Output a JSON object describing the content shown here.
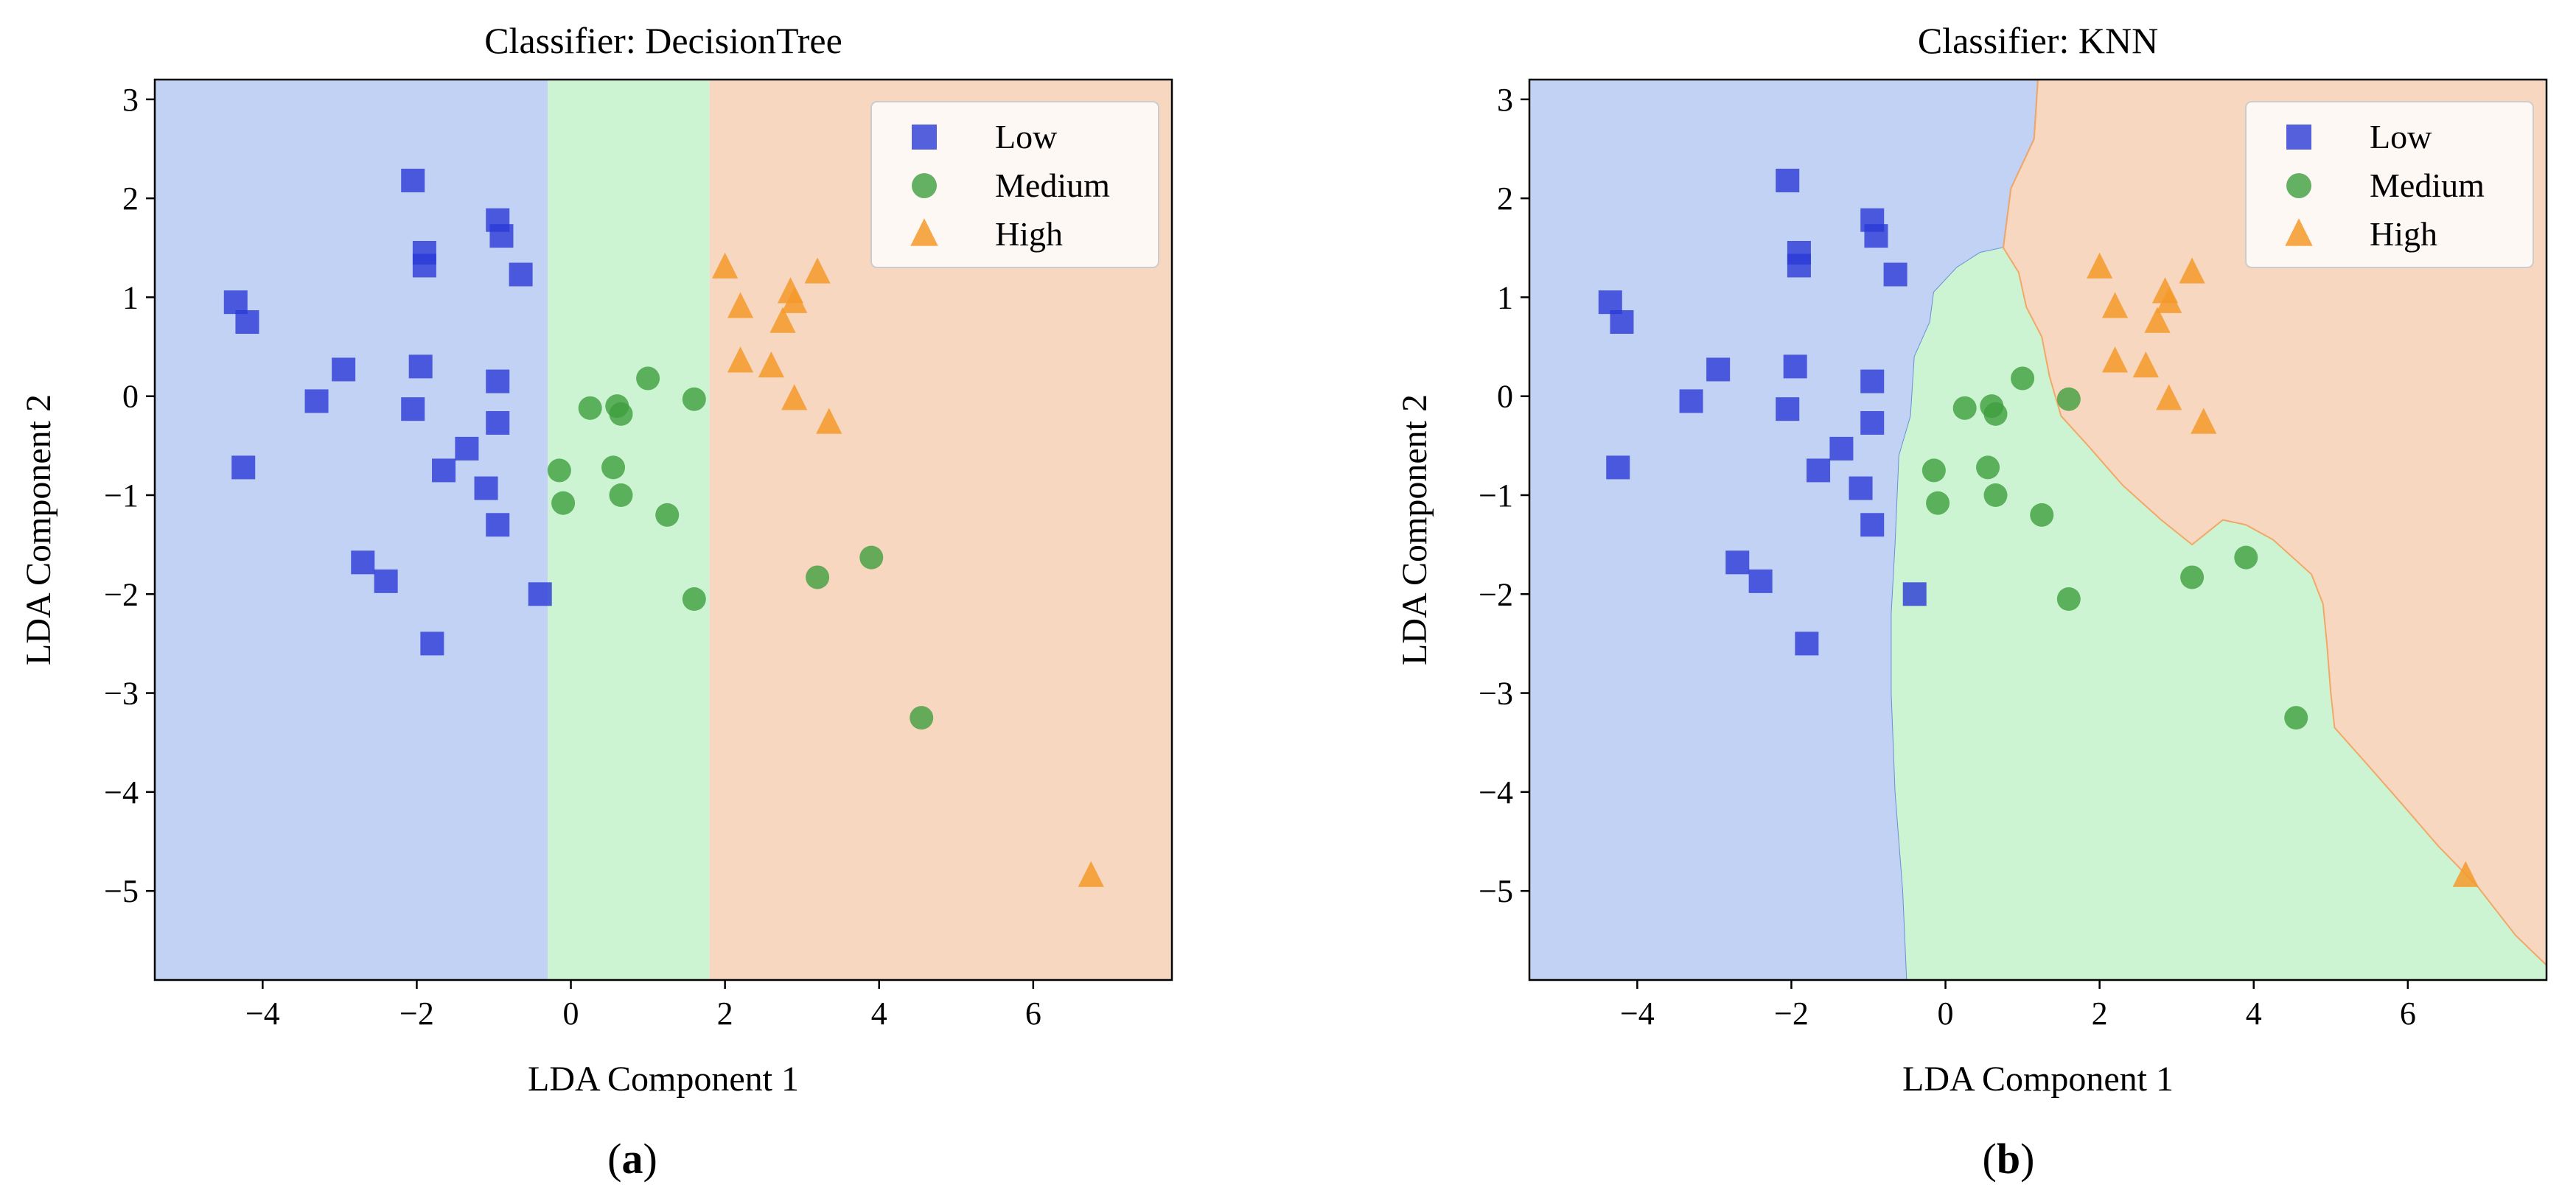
{
  "chart_data": [
    {
      "type": "scatter",
      "title": "Classifier: DecisionTree",
      "xlabel": "LDA Component 1",
      "ylabel": "LDA Component 2",
      "xlim": [
        -5.4,
        7.8
      ],
      "ylim": [
        -5.9,
        3.2
      ],
      "xticks": [
        -4,
        -2,
        0,
        2,
        4,
        6
      ],
      "yticks": [
        -5,
        -4,
        -3,
        -2,
        -1,
        0,
        1,
        2,
        3
      ],
      "xtick_labels": [
        "−4",
        "−2",
        "0",
        "2",
        "4",
        "6"
      ],
      "ytick_labels": [
        "−5",
        "−4",
        "−3",
        "−2",
        "−1",
        "0",
        "1",
        "2",
        "3"
      ],
      "grid": false,
      "legend_position": "top-right",
      "subfigure_label": "(a)",
      "regions": [
        {
          "class": "Low",
          "color": "#c1d2f4",
          "x_range": [
            -5.4,
            -0.3
          ]
        },
        {
          "class": "Medium",
          "color": "#cdf4d2",
          "x_range": [
            -0.3,
            1.8
          ]
        },
        {
          "class": "High",
          "color": "#f7d7bf",
          "x_range": [
            1.8,
            7.8
          ]
        }
      ]
    },
    {
      "type": "scatter",
      "title": "Classifier: KNN",
      "xlabel": "LDA Component 1",
      "ylabel": "LDA Component 2",
      "xlim": [
        -5.4,
        7.8
      ],
      "ylim": [
        -5.9,
        3.2
      ],
      "xticks": [
        -4,
        -2,
        0,
        2,
        4,
        6
      ],
      "yticks": [
        -5,
        -4,
        -3,
        -2,
        -1,
        0,
        1,
        2,
        3
      ],
      "xtick_labels": [
        "−4",
        "−2",
        "0",
        "2",
        "4",
        "6"
      ],
      "ytick_labels": [
        "−5",
        "−4",
        "−3",
        "−2",
        "−1",
        "0",
        "1",
        "2",
        "3"
      ],
      "grid": false,
      "legend_position": "top-right",
      "subfigure_label": "(b)",
      "regions": [
        {
          "class": "Low",
          "color": "#c1d2f4",
          "polygon": [
            [
              -5.4,
              3.2
            ],
            [
              1.2,
              3.2
            ],
            [
              1.15,
              2.6
            ],
            [
              0.85,
              2.1
            ],
            [
              0.75,
              1.5
            ],
            [
              0.45,
              1.45
            ],
            [
              0.15,
              1.3
            ],
            [
              -0.15,
              1.05
            ],
            [
              -0.2,
              0.75
            ],
            [
              -0.4,
              0.4
            ],
            [
              -0.45,
              -0.2
            ],
            [
              -0.6,
              -0.6
            ],
            [
              -0.65,
              -1.5
            ],
            [
              -0.7,
              -2.2
            ],
            [
              -0.7,
              -3.0
            ],
            [
              -0.65,
              -4.0
            ],
            [
              -0.55,
              -5.0
            ],
            [
              -0.5,
              -5.9
            ],
            [
              -5.4,
              -5.9
            ]
          ]
        },
        {
          "class": "Medium",
          "color": "#cdf4d2",
          "polygon": [
            [
              -0.5,
              -5.9
            ],
            [
              -0.55,
              -5.0
            ],
            [
              -0.65,
              -4.0
            ],
            [
              -0.7,
              -3.0
            ],
            [
              -0.7,
              -2.2
            ],
            [
              -0.65,
              -1.5
            ],
            [
              -0.6,
              -0.6
            ],
            [
              -0.45,
              -0.2
            ],
            [
              -0.4,
              0.4
            ],
            [
              -0.2,
              0.75
            ],
            [
              -0.15,
              1.05
            ],
            [
              0.15,
              1.3
            ],
            [
              0.45,
              1.45
            ],
            [
              0.75,
              1.5
            ],
            [
              0.95,
              1.25
            ],
            [
              1.05,
              0.9
            ],
            [
              1.25,
              0.6
            ],
            [
              1.35,
              0.2
            ],
            [
              1.5,
              -0.2
            ],
            [
              1.85,
              -0.5
            ],
            [
              2.3,
              -0.9
            ],
            [
              2.8,
              -1.25
            ],
            [
              3.2,
              -1.5
            ],
            [
              3.6,
              -1.25
            ],
            [
              3.9,
              -1.3
            ],
            [
              4.25,
              -1.45
            ],
            [
              4.75,
              -1.8
            ],
            [
              4.9,
              -2.1
            ],
            [
              4.95,
              -2.5
            ],
            [
              5.0,
              -3.0
            ],
            [
              5.05,
              -3.35
            ],
            [
              5.45,
              -3.7
            ],
            [
              5.9,
              -4.1
            ],
            [
              6.4,
              -4.55
            ],
            [
              6.9,
              -4.95
            ],
            [
              7.4,
              -5.45
            ],
            [
              7.8,
              -5.75
            ],
            [
              7.8,
              -5.9
            ]
          ]
        },
        {
          "class": "High",
          "color": "#f7d7bf",
          "polygon": [
            [
              1.2,
              3.2
            ],
            [
              7.8,
              3.2
            ],
            [
              7.8,
              -5.75
            ],
            [
              7.4,
              -5.45
            ],
            [
              6.9,
              -4.95
            ],
            [
              6.4,
              -4.55
            ],
            [
              5.9,
              -4.1
            ],
            [
              5.45,
              -3.7
            ],
            [
              5.05,
              -3.35
            ],
            [
              5.0,
              -3.0
            ],
            [
              4.95,
              -2.5
            ],
            [
              4.9,
              -2.1
            ],
            [
              4.75,
              -1.8
            ],
            [
              4.25,
              -1.45
            ],
            [
              3.9,
              -1.3
            ],
            [
              3.6,
              -1.25
            ],
            [
              3.2,
              -1.5
            ],
            [
              2.8,
              -1.25
            ],
            [
              2.3,
              -0.9
            ],
            [
              1.85,
              -0.5
            ],
            [
              1.5,
              -0.2
            ],
            [
              1.35,
              0.2
            ],
            [
              1.25,
              0.6
            ],
            [
              1.05,
              0.9
            ],
            [
              0.95,
              1.25
            ],
            [
              0.75,
              1.5
            ],
            [
              0.85,
              2.1
            ],
            [
              1.15,
              2.6
            ]
          ]
        }
      ]
    }
  ],
  "series": [
    {
      "name": "Low",
      "marker": "square",
      "color": "#2b3ad6",
      "points": [
        [
          -4.35,
          0.95
        ],
        [
          -4.2,
          0.75
        ],
        [
          -4.25,
          -0.72
        ],
        [
          -3.3,
          -0.05
        ],
        [
          -2.95,
          0.27
        ],
        [
          -2.05,
          2.18
        ],
        [
          -1.9,
          1.45
        ],
        [
          -1.9,
          1.32
        ],
        [
          -1.95,
          0.3
        ],
        [
          -2.05,
          -0.13
        ],
        [
          -0.95,
          1.78
        ],
        [
          -0.9,
          1.62
        ],
        [
          -0.65,
          1.23
        ],
        [
          -0.95,
          0.15
        ],
        [
          -0.95,
          -0.27
        ],
        [
          -1.35,
          -0.53
        ],
        [
          -1.65,
          -0.75
        ],
        [
          -1.1,
          -0.93
        ],
        [
          -0.95,
          -1.3
        ],
        [
          -2.7,
          -1.68
        ],
        [
          -2.4,
          -1.87
        ],
        [
          -1.8,
          -2.5
        ],
        [
          -0.4,
          -2.0
        ]
      ]
    },
    {
      "name": "Medium",
      "marker": "circle",
      "color": "#3f9f3f",
      "points": [
        [
          0.25,
          -0.12
        ],
        [
          0.6,
          -0.1
        ],
        [
          0.65,
          -0.18
        ],
        [
          1.0,
          0.18
        ],
        [
          1.6,
          -0.03
        ],
        [
          -0.15,
          -0.75
        ],
        [
          -0.1,
          -1.08
        ],
        [
          0.55,
          -0.72
        ],
        [
          0.65,
          -1.0
        ],
        [
          1.25,
          -1.2
        ],
        [
          1.6,
          -2.05
        ],
        [
          3.2,
          -1.83
        ],
        [
          3.9,
          -1.63
        ],
        [
          4.55,
          -3.25
        ]
      ]
    },
    {
      "name": "High",
      "marker": "triangle",
      "color": "#f59a2a",
      "points": [
        [
          2.0,
          1.3
        ],
        [
          2.2,
          0.9
        ],
        [
          2.2,
          0.35
        ],
        [
          2.6,
          0.3
        ],
        [
          2.75,
          0.75
        ],
        [
          2.85,
          1.05
        ],
        [
          2.9,
          0.95
        ],
        [
          3.2,
          1.25
        ],
        [
          2.9,
          -0.03
        ],
        [
          3.35,
          -0.27
        ],
        [
          6.75,
          -4.85
        ]
      ]
    }
  ],
  "legend": {
    "items": [
      {
        "label": "Low",
        "marker": "square",
        "color": "#2b3ad6"
      },
      {
        "label": "Medium",
        "marker": "circle",
        "color": "#3f9f3f"
      },
      {
        "label": "High",
        "marker": "triangle",
        "color": "#f59a2a"
      }
    ]
  },
  "colors": {
    "low_region": "#c1d2f4",
    "medium_region": "#cdf4d2",
    "high_region": "#f7d7bf",
    "low_boundary": "#6a8fd8",
    "high_boundary": "#f0a868"
  }
}
